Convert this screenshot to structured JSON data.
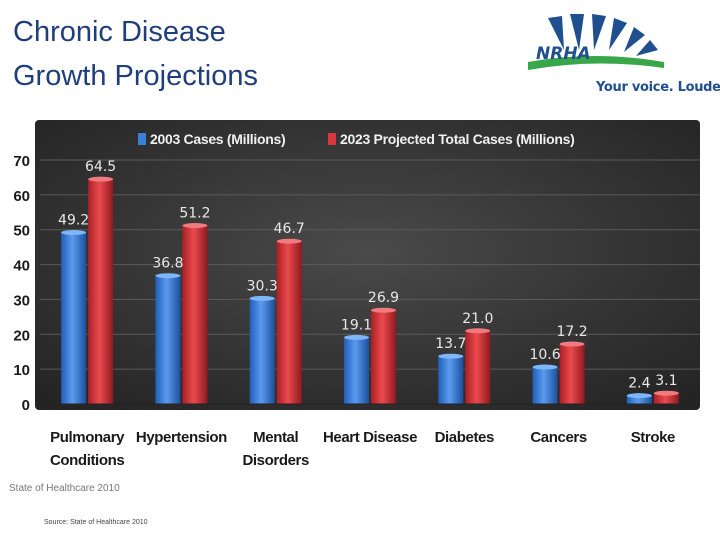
{
  "slide": {
    "title_line1": "Chronic Disease",
    "title_line2": "Growth Projections",
    "logo_text": "NRHA",
    "tagline": "Your voice. Louder.",
    "source_overlay": "State of Healthcare 2010",
    "source_footnote": "Source: State of Healthcare 2010"
  },
  "colors": {
    "title": "#1f3e7a",
    "series_2003": "#3c7fd8",
    "series_2023": "#d8383d",
    "chart_bg": "#3a3a3a",
    "logo_blue": "#1f4f8f",
    "logo_green": "#3aa64a"
  },
  "chart_data": {
    "type": "bar",
    "title": "",
    "categories": [
      [
        "Pulmonary",
        "Conditions"
      ],
      [
        "Hypertension"
      ],
      [
        "Mental",
        "Disorders"
      ],
      [
        "Heart Disease"
      ],
      [
        "Diabetes"
      ],
      [
        "Cancers"
      ],
      [
        "Stroke"
      ]
    ],
    "series": [
      {
        "name": "2003 Cases (Millions)",
        "values": [
          49.2,
          36.8,
          30.3,
          19.1,
          13.7,
          10.6,
          2.4
        ],
        "labels": [
          "49.2",
          "36.8",
          "30.3",
          "19.1",
          "13.7",
          "10.6",
          "2.4"
        ]
      },
      {
        "name": "2023 Projected Total  Cases (Millions)",
        "values": [
          64.5,
          51.2,
          46.7,
          26.9,
          21.0,
          17.2,
          3.1
        ],
        "labels": [
          "64.5",
          "51.2",
          "46.7",
          "26.9",
          "21.0",
          "17.2",
          "3.1"
        ]
      }
    ],
    "yticks": [
      "0",
      "10",
      "20",
      "30",
      "40",
      "50",
      "60",
      "70"
    ],
    "ylim": [
      0,
      70
    ],
    "xlabel": "",
    "ylabel": "",
    "legend_position": "top"
  }
}
